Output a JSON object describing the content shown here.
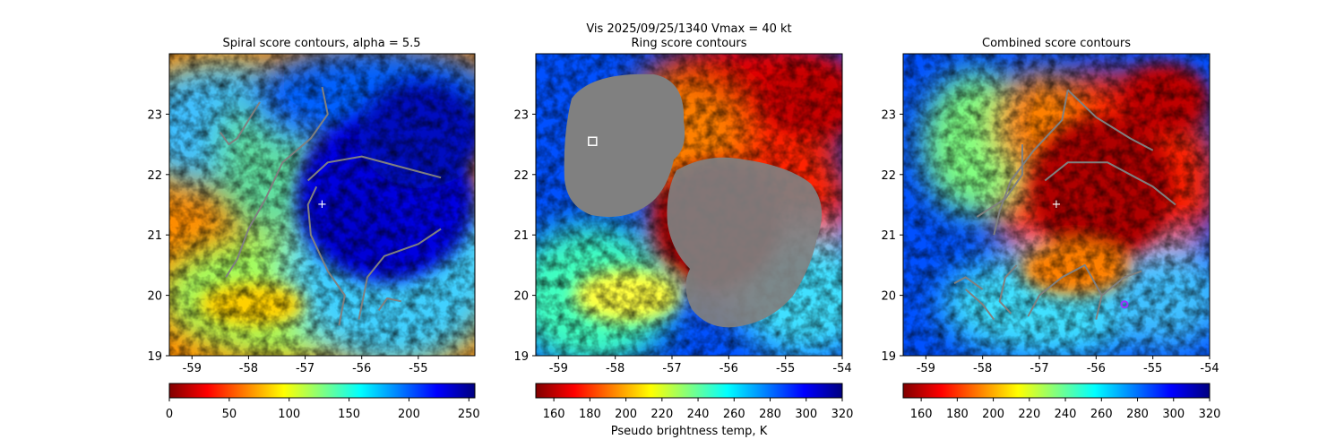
{
  "figure": {
    "suptitle_line1": "Vis  2025/09/25/1340    Vmax = 40 kt",
    "colorbar_label": "Pseudo brightness temp, K"
  },
  "colors": {
    "contour": "#808080",
    "center_marker": "#ffffff",
    "ring_marker": "#ffffff",
    "combined_marker": "#9b30ff"
  },
  "chart_data": [
    {
      "type": "heatmap",
      "title": "Spiral score contours, alpha =  5.5",
      "xlim": [
        -59.4,
        -54.0
      ],
      "ylim": [
        19.0,
        24.0
      ],
      "xticks": [
        "-59",
        "-58",
        "-57",
        "-56",
        "-55"
      ],
      "yticks": [
        "19",
        "20",
        "21",
        "22",
        "23"
      ],
      "colormap": "jet_r",
      "colorbar": {
        "range": [
          0,
          255
        ],
        "ticks": [
          "0",
          "50",
          "100",
          "150",
          "200",
          "250"
        ]
      },
      "center_marker": {
        "lon": -56.7,
        "lat": 21.5,
        "symbol": "+"
      },
      "contours": [
        [
          [
            -56.7,
            23.45
          ],
          [
            -56.6,
            23.0
          ],
          [
            -56.9,
            22.6
          ],
          [
            -57.4,
            22.2
          ],
          [
            -57.7,
            21.6
          ],
          [
            -58.0,
            21.1
          ],
          [
            -58.2,
            20.6
          ],
          [
            -58.4,
            20.3
          ]
        ],
        [
          [
            -56.8,
            21.8
          ],
          [
            -56.95,
            21.5
          ],
          [
            -56.9,
            21.0
          ],
          [
            -56.6,
            20.4
          ],
          [
            -56.3,
            20.0
          ],
          [
            -56.4,
            19.5
          ]
        ],
        [
          [
            -56.95,
            21.9
          ],
          [
            -56.6,
            22.2
          ],
          [
            -56.0,
            22.3
          ],
          [
            -55.2,
            22.1
          ],
          [
            -54.6,
            21.95
          ]
        ],
        [
          [
            -56.05,
            19.6
          ],
          [
            -55.9,
            20.3
          ],
          [
            -55.6,
            20.65
          ],
          [
            -55.0,
            20.85
          ],
          [
            -54.6,
            21.1
          ]
        ],
        [
          [
            -58.5,
            22.7
          ],
          [
            -58.35,
            22.5
          ],
          [
            -58.2,
            22.6
          ],
          [
            -58.0,
            22.9
          ],
          [
            -57.8,
            23.2
          ]
        ],
        [
          [
            -55.7,
            19.75
          ],
          [
            -55.55,
            19.95
          ],
          [
            -55.3,
            19.9
          ]
        ]
      ]
    },
    {
      "type": "heatmap",
      "title": "Ring score contours",
      "xlim": [
        -59.4,
        -54.0
      ],
      "ylim": [
        19.0,
        24.0
      ],
      "xticks": [
        "-59",
        "-58",
        "-57",
        "-56",
        "-55",
        "-54"
      ],
      "yticks": [
        "19",
        "20",
        "21",
        "22",
        "23"
      ],
      "colormap": "jet_r",
      "colorbar": {
        "range": [
          150,
          320
        ],
        "ticks": [
          "160",
          "180",
          "200",
          "220",
          "240",
          "260",
          "280",
          "300",
          "320"
        ]
      },
      "ring_marker": {
        "lon": -58.4,
        "lat": 22.55,
        "symbol": "square"
      }
    },
    {
      "type": "heatmap",
      "title": "Combined score contours",
      "xlim": [
        -59.4,
        -54.0
      ],
      "ylim": [
        19.0,
        24.0
      ],
      "xticks": [
        "-59",
        "-58",
        "-57",
        "-56",
        "-55",
        "-54"
      ],
      "yticks": [
        "19",
        "20",
        "21",
        "22",
        "23"
      ],
      "colormap": "jet_r",
      "colorbar": {
        "range": [
          150,
          320
        ],
        "ticks": [
          "160",
          "180",
          "200",
          "220",
          "240",
          "260",
          "280",
          "300",
          "320"
        ]
      },
      "center_marker": {
        "lon": -56.7,
        "lat": 21.5,
        "symbol": "+"
      },
      "best_marker": {
        "lon": -55.5,
        "lat": 19.85,
        "symbol": "circle"
      },
      "contours": [
        [
          [
            -56.5,
            23.4
          ],
          [
            -56.6,
            22.9
          ],
          [
            -57.1,
            22.4
          ],
          [
            -57.5,
            21.9
          ],
          [
            -57.7,
            21.4
          ],
          [
            -57.8,
            21.0
          ]
        ],
        [
          [
            -56.9,
            21.9
          ],
          [
            -56.5,
            22.2
          ],
          [
            -55.8,
            22.2
          ],
          [
            -55.0,
            21.8
          ],
          [
            -54.6,
            21.5
          ]
        ],
        [
          [
            -56.5,
            23.4
          ],
          [
            -56.0,
            22.95
          ],
          [
            -55.4,
            22.6
          ],
          [
            -55.0,
            22.4
          ]
        ],
        [
          [
            -57.3,
            22.5
          ],
          [
            -57.3,
            22.0
          ],
          [
            -57.6,
            21.6
          ],
          [
            -58.1,
            21.3
          ]
        ],
        [
          [
            -58.3,
            20.1
          ],
          [
            -58.0,
            19.85
          ],
          [
            -57.8,
            19.6
          ]
        ],
        [
          [
            -57.2,
            19.65
          ],
          [
            -57.0,
            20.0
          ],
          [
            -56.6,
            20.3
          ],
          [
            -56.2,
            20.5
          ],
          [
            -55.9,
            20.0
          ]
        ],
        [
          [
            -56.0,
            19.6
          ],
          [
            -55.9,
            20.0
          ],
          [
            -55.5,
            20.3
          ],
          [
            -55.2,
            20.4
          ]
        ],
        [
          [
            -57.4,
            20.5
          ],
          [
            -57.6,
            20.3
          ],
          [
            -57.7,
            19.9
          ],
          [
            -57.5,
            19.7
          ]
        ],
        [
          [
            -58.5,
            20.2
          ],
          [
            -58.3,
            20.3
          ],
          [
            -58.0,
            20.1
          ]
        ]
      ]
    }
  ]
}
